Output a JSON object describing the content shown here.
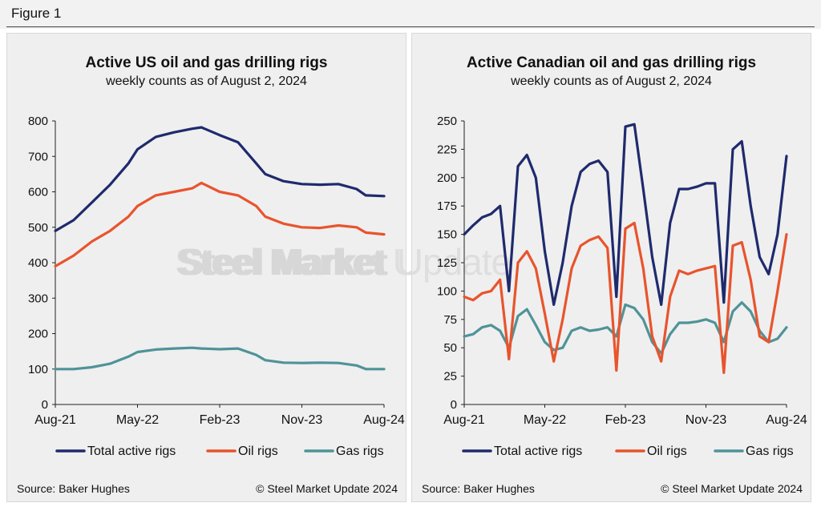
{
  "figure": {
    "title": "Figure 1"
  },
  "colors": {
    "total": "#1f2a6d",
    "oil": "#e8542d",
    "gas": "#4f9398"
  },
  "watermark": {
    "bold": "Steel Market",
    "light": "Update"
  },
  "chart_data": [
    {
      "type": "line",
      "title": "Active US oil and gas drilling rigs",
      "subtitle": "weekly counts as of August 2, 2024",
      "source": "Source: Baker Hughes",
      "copyright": "© Steel Market Update 2024",
      "ylim": [
        0,
        800
      ],
      "yticks": [
        0,
        100,
        200,
        300,
        400,
        500,
        600,
        700,
        800
      ],
      "xlim": [
        "2021-08",
        "2024-08"
      ],
      "xticks": [
        "Aug-21",
        "May-22",
        "Feb-23",
        "Nov-23",
        "Aug-24"
      ],
      "legend": "bottom",
      "series": [
        {
          "name": "Total active rigs",
          "color": "#1f2a6d",
          "x": [
            "2021-08",
            "2021-10",
            "2021-12",
            "2022-02",
            "2022-04",
            "2022-05",
            "2022-07",
            "2022-09",
            "2022-11",
            "2022-12",
            "2023-02",
            "2023-04",
            "2023-06",
            "2023-07",
            "2023-09",
            "2023-11",
            "2024-01",
            "2024-03",
            "2024-05",
            "2024-06",
            "2024-08"
          ],
          "y": [
            490,
            520,
            570,
            620,
            680,
            720,
            755,
            768,
            778,
            782,
            760,
            740,
            680,
            650,
            630,
            622,
            620,
            622,
            608,
            590,
            588
          ]
        },
        {
          "name": "Oil rigs",
          "color": "#e8542d",
          "x": [
            "2021-08",
            "2021-10",
            "2021-12",
            "2022-02",
            "2022-04",
            "2022-05",
            "2022-07",
            "2022-09",
            "2022-11",
            "2022-12",
            "2023-02",
            "2023-04",
            "2023-06",
            "2023-07",
            "2023-09",
            "2023-11",
            "2024-01",
            "2024-03",
            "2024-05",
            "2024-06",
            "2024-08"
          ],
          "y": [
            390,
            420,
            460,
            490,
            530,
            560,
            590,
            600,
            610,
            625,
            600,
            590,
            560,
            530,
            510,
            500,
            498,
            505,
            500,
            485,
            480
          ]
        },
        {
          "name": "Gas rigs",
          "color": "#4f9398",
          "x": [
            "2021-08",
            "2021-10",
            "2021-12",
            "2022-02",
            "2022-04",
            "2022-05",
            "2022-07",
            "2022-09",
            "2022-11",
            "2022-12",
            "2023-02",
            "2023-04",
            "2023-06",
            "2023-07",
            "2023-09",
            "2023-11",
            "2024-01",
            "2024-03",
            "2024-05",
            "2024-06",
            "2024-08"
          ],
          "y": [
            100,
            100,
            105,
            115,
            135,
            148,
            155,
            158,
            160,
            158,
            156,
            158,
            140,
            125,
            118,
            117,
            118,
            117,
            110,
            100,
            100
          ]
        }
      ]
    },
    {
      "type": "line",
      "title": "Active Canadian oil and gas drilling rigs",
      "subtitle": "weekly counts as of August 2, 2024",
      "source": "Source: Baker Hughes",
      "copyright": "© Steel Market Update 2024",
      "ylim": [
        0,
        250
      ],
      "yticks": [
        0,
        25,
        50,
        75,
        100,
        125,
        150,
        175,
        200,
        225,
        250
      ],
      "xlim": [
        "2021-08",
        "2024-08"
      ],
      "xticks": [
        "Aug-21",
        "May-22",
        "Feb-23",
        "Nov-23",
        "Aug-24"
      ],
      "legend": "bottom",
      "series": [
        {
          "name": "Total active rigs",
          "color": "#1f2a6d",
          "x": [
            "2021-08",
            "2021-09",
            "2021-10",
            "2021-11",
            "2021-12",
            "2022-01",
            "2022-02",
            "2022-03",
            "2022-04",
            "2022-05",
            "2022-06",
            "2022-07",
            "2022-08",
            "2022-09",
            "2022-10",
            "2022-11",
            "2022-12",
            "2023-01",
            "2023-02",
            "2023-03",
            "2023-04",
            "2023-05",
            "2023-06",
            "2023-07",
            "2023-08",
            "2023-09",
            "2023-10",
            "2023-11",
            "2023-12",
            "2024-01",
            "2024-02",
            "2024-03",
            "2024-04",
            "2024-05",
            "2024-06",
            "2024-07",
            "2024-08"
          ],
          "y": [
            150,
            158,
            165,
            168,
            175,
            100,
            210,
            220,
            200,
            135,
            88,
            125,
            175,
            205,
            212,
            215,
            205,
            95,
            245,
            247,
            190,
            130,
            88,
            160,
            190,
            190,
            192,
            195,
            195,
            90,
            225,
            232,
            175,
            130,
            115,
            150,
            219
          ]
        },
        {
          "name": "Oil rigs",
          "color": "#e8542d",
          "x": [
            "2021-08",
            "2021-09",
            "2021-10",
            "2021-11",
            "2021-12",
            "2022-01",
            "2022-02",
            "2022-03",
            "2022-04",
            "2022-05",
            "2022-06",
            "2022-07",
            "2022-08",
            "2022-09",
            "2022-10",
            "2022-11",
            "2022-12",
            "2023-01",
            "2023-02",
            "2023-03",
            "2023-04",
            "2023-05",
            "2023-06",
            "2023-07",
            "2023-08",
            "2023-09",
            "2023-10",
            "2023-11",
            "2023-12",
            "2024-01",
            "2024-02",
            "2024-03",
            "2024-04",
            "2024-05",
            "2024-06",
            "2024-07",
            "2024-08"
          ],
          "y": [
            95,
            92,
            98,
            100,
            110,
            40,
            125,
            135,
            120,
            80,
            38,
            75,
            120,
            140,
            145,
            148,
            138,
            30,
            155,
            160,
            120,
            60,
            38,
            95,
            118,
            115,
            118,
            120,
            122,
            28,
            140,
            143,
            110,
            60,
            55,
            100,
            150
          ]
        },
        {
          "name": "Gas rigs",
          "color": "#4f9398",
          "x": [
            "2021-08",
            "2021-09",
            "2021-10",
            "2021-11",
            "2021-12",
            "2022-01",
            "2022-02",
            "2022-03",
            "2022-04",
            "2022-05",
            "2022-06",
            "2022-07",
            "2022-08",
            "2022-09",
            "2022-10",
            "2022-11",
            "2022-12",
            "2023-01",
            "2023-02",
            "2023-03",
            "2023-04",
            "2023-05",
            "2023-06",
            "2023-07",
            "2023-08",
            "2023-09",
            "2023-10",
            "2023-11",
            "2023-12",
            "2024-01",
            "2024-02",
            "2024-03",
            "2024-04",
            "2024-05",
            "2024-06",
            "2024-07",
            "2024-08"
          ],
          "y": [
            60,
            62,
            68,
            70,
            65,
            50,
            78,
            84,
            70,
            55,
            48,
            50,
            65,
            68,
            65,
            66,
            68,
            60,
            88,
            85,
            75,
            55,
            45,
            62,
            72,
            72,
            73,
            75,
            72,
            55,
            82,
            90,
            82,
            65,
            55,
            58,
            68
          ]
        }
      ]
    }
  ]
}
